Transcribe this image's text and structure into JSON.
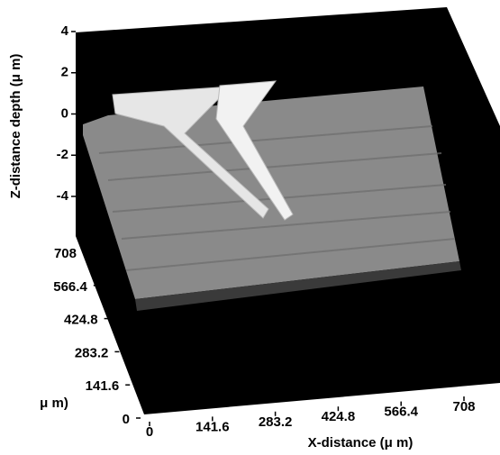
{
  "chart_data": {
    "type": "surface",
    "xlabel": "X-distance (μ m)",
    "ylabel": "μ m)",
    "zlabel": "Z-distance depth (μ m)",
    "xlim": [
      0,
      708
    ],
    "xticks": [
      0,
      141.6,
      283.2,
      424.8,
      566.4,
      708
    ],
    "ylim": [
      0,
      708
    ],
    "yticks": [
      0,
      141.6,
      283.2,
      424.8,
      566.4,
      708
    ],
    "zlim": [
      -4,
      4
    ],
    "zticks": [
      -4,
      -2,
      0,
      2,
      4
    ],
    "color": "#8a8a8a"
  }
}
